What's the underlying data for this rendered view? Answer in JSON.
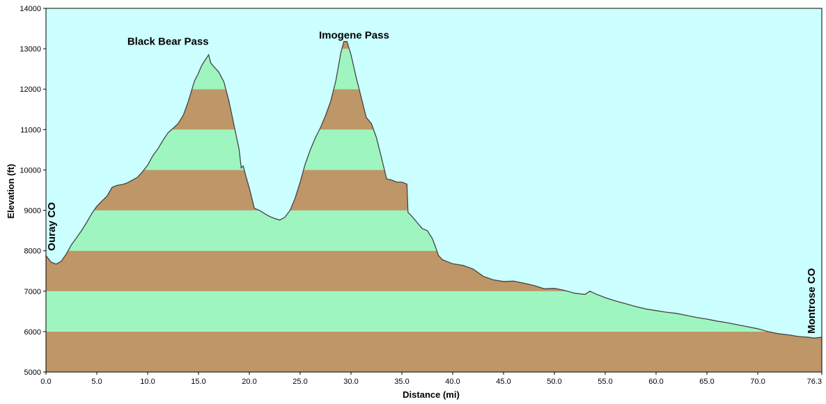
{
  "chart_data": {
    "type": "area",
    "title": "",
    "xlabel": "Distance  (mi)",
    "ylabel": "Elevation (ft)",
    "xlim": [
      0,
      76.3
    ],
    "ylim": [
      5000,
      14000
    ],
    "x_ticks": [
      0,
      5,
      10,
      15,
      20,
      25,
      30,
      35,
      40,
      45,
      50,
      55,
      60,
      65,
      70
    ],
    "x_tick_labels": [
      "0.0",
      "5.0",
      "10.0",
      "15.0",
      "20.0",
      "25.0",
      "30.0",
      "35.0",
      "40.0",
      "45.0",
      "50.0",
      "55.0",
      "60.0",
      "65.0",
      "70.0"
    ],
    "x_end_label": "76.3",
    "y_ticks": [
      5000,
      6000,
      7000,
      8000,
      9000,
      10000,
      11000,
      12000,
      13000,
      14000
    ],
    "y_tick_labels": [
      "5000",
      "6000",
      "7000",
      "8000",
      "9000",
      "10000",
      "11000",
      "12000",
      "13000",
      "14000"
    ],
    "band_interval": 1000,
    "colors": {
      "sky": "#ccffff",
      "band_brown": "#bf9667",
      "band_green": "#9ff5c0",
      "profile_line": "#444444",
      "axis": "#000000"
    },
    "grid": false,
    "legend": "none",
    "annotations": [
      {
        "text": "Black Bear Pass",
        "x": 12.0,
        "y": 13100,
        "anchor": "middle",
        "rotate": false
      },
      {
        "text": "Imogene Pass",
        "x": 30.3,
        "y": 13250,
        "anchor": "middle",
        "rotate": false
      },
      {
        "text": "Ouray CO",
        "x": 0.9,
        "y": 8000,
        "anchor": "start",
        "rotate": true
      },
      {
        "text": "Montrose CO",
        "x": 75.6,
        "y": 5950,
        "anchor": "start",
        "rotate": true
      }
    ],
    "series": [
      {
        "x": [
          0,
          0.5,
          1.0,
          1.5,
          2.0,
          2.5,
          3.0,
          3.5,
          4.0,
          4.5,
          5.0,
          5.5,
          6.0,
          6.5,
          7.0,
          7.5,
          8.0,
          9.0,
          9.5,
          10.0,
          10.5,
          11.0,
          11.5,
          12.0,
          12.5,
          13.0,
          13.5,
          14.0,
          14.3,
          14.6,
          15.0,
          15.3,
          15.6,
          16.0,
          16.2,
          16.5,
          17.0,
          17.5,
          18.0,
          18.5,
          19.0,
          19.2,
          19.4,
          19.6,
          20.0,
          20.5,
          21.0,
          21.5,
          22.0,
          22.5,
          23.0,
          23.5,
          24.0,
          24.5,
          25.0,
          25.5,
          26.0,
          26.5,
          27.0,
          27.5,
          28.0,
          28.5,
          29.0,
          29.3,
          29.6,
          30.0,
          30.5,
          31.0,
          31.5,
          32.0,
          32.5,
          33.0,
          33.5,
          34.0,
          34.5,
          35.0,
          35.5,
          35.6,
          35.8,
          36.0,
          36.5,
          37.0,
          37.5,
          38.0,
          38.3,
          38.6,
          39.0,
          40.0,
          41.0,
          42.0,
          43.0,
          44.0,
          45.0,
          46.0,
          47.0,
          48.0,
          49.0,
          50.0,
          51.0,
          52.0,
          53.0,
          53.5,
          54.0,
          55.0,
          56.0,
          57.0,
          58.0,
          59.0,
          60.0,
          61.0,
          62.0,
          63.0,
          64.0,
          65.0,
          66.0,
          67.0,
          68.0,
          69.0,
          70.0,
          71.0,
          72.0,
          73.0,
          74.0,
          75.0,
          75.5,
          76.3
        ],
        "y": [
          7880,
          7720,
          7670,
          7740,
          7920,
          8150,
          8320,
          8500,
          8700,
          8920,
          9100,
          9230,
          9350,
          9570,
          9620,
          9640,
          9680,
          9820,
          9960,
          10120,
          10350,
          10520,
          10730,
          10920,
          11030,
          11150,
          11350,
          11700,
          11950,
          12200,
          12400,
          12580,
          12700,
          12850,
          12650,
          12560,
          12420,
          12180,
          11700,
          11100,
          10500,
          10050,
          10100,
          9900,
          9550,
          9050,
          9000,
          8920,
          8850,
          8800,
          8760,
          8830,
          9000,
          9300,
          9700,
          10150,
          10500,
          10800,
          11050,
          11350,
          11700,
          12200,
          12900,
          13180,
          13180,
          12850,
          12300,
          11800,
          11300,
          11150,
          10800,
          10300,
          9780,
          9750,
          9700,
          9700,
          9650,
          8950,
          8900,
          8850,
          8700,
          8550,
          8500,
          8300,
          8100,
          7880,
          7780,
          7680,
          7640,
          7550,
          7370,
          7280,
          7240,
          7250,
          7200,
          7140,
          7060,
          7070,
          7020,
          6950,
          6920,
          7000,
          6940,
          6840,
          6760,
          6690,
          6620,
          6560,
          6520,
          6480,
          6450,
          6400,
          6350,
          6310,
          6260,
          6220,
          6170,
          6120,
          6070,
          6000,
          5950,
          5920,
          5880,
          5860,
          5840,
          5860
        ]
      }
    ]
  }
}
